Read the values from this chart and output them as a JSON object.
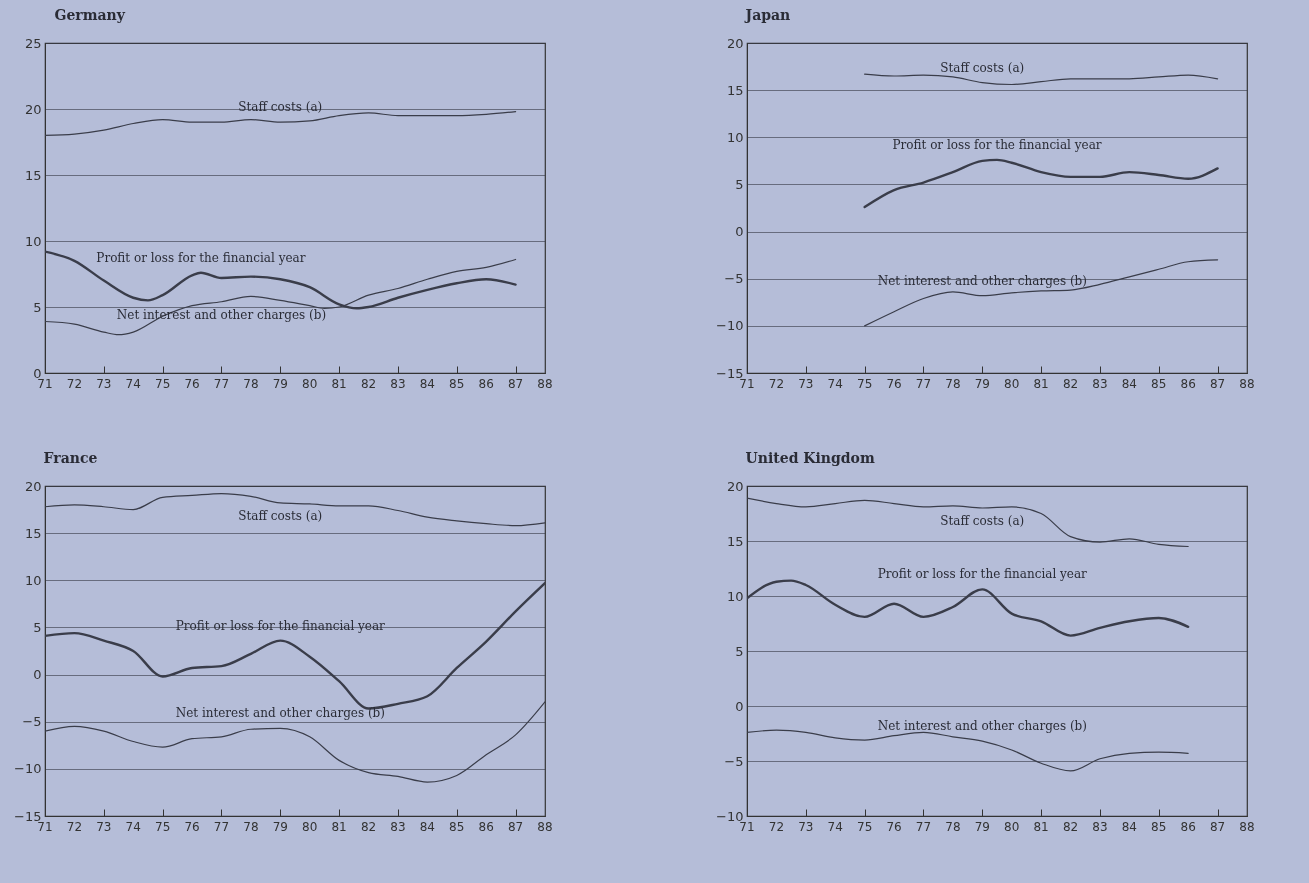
{
  "chart_data": [
    {
      "type": "line",
      "title": "Germany",
      "xlim": [
        71,
        88
      ],
      "xticks": [
        71,
        72,
        73,
        74,
        75,
        76,
        77,
        78,
        79,
        80,
        81,
        82,
        83,
        84,
        85,
        86,
        87,
        88
      ],
      "ylim": [
        0,
        25
      ],
      "yticks": [
        0,
        5,
        10,
        15,
        20,
        25
      ],
      "grid": "y",
      "series": [
        {
          "name": "Staff costs (a)",
          "color": "#3a3d4a",
          "x": [
            71,
            72,
            73,
            74,
            75,
            76,
            77,
            78,
            79,
            80,
            81,
            82,
            83,
            84,
            85,
            86,
            87
          ],
          "values": [
            18.0,
            18.1,
            18.4,
            18.9,
            19.2,
            19.0,
            19.0,
            19.2,
            19.0,
            19.1,
            19.5,
            19.7,
            19.5,
            19.5,
            19.5,
            19.6,
            19.8
          ]
        },
        {
          "name": "Profit or loss for the financial year",
          "color": "#3a3d4a",
          "x": [
            71,
            72,
            73,
            74,
            74.5,
            75,
            76,
            76.3,
            77,
            78,
            79,
            80,
            81,
            81.6,
            82,
            83,
            84,
            85,
            86,
            87
          ],
          "values": [
            9.2,
            8.5,
            7.0,
            5.7,
            5.5,
            5.9,
            7.4,
            7.6,
            7.2,
            7.3,
            7.1,
            6.5,
            5.2,
            4.9,
            5.0,
            5.7,
            6.3,
            6.8,
            7.1,
            6.7
          ]
        },
        {
          "name": "Net interest and other charges (b)",
          "color": "#3a3d4a",
          "x": [
            71,
            72,
            73,
            73.5,
            74,
            75,
            76,
            77,
            78,
            79,
            80,
            80.5,
            81,
            82,
            83,
            84,
            85,
            86,
            87
          ],
          "values": [
            3.9,
            3.7,
            3.1,
            2.9,
            3.1,
            4.3,
            5.1,
            5.4,
            5.8,
            5.5,
            5.1,
            4.9,
            5.0,
            5.9,
            6.4,
            7.1,
            7.7,
            8.0,
            8.6
          ]
        }
      ]
    },
    {
      "type": "line",
      "title": "Japan",
      "xlim": [
        71,
        88
      ],
      "xticks": [
        71,
        72,
        73,
        74,
        75,
        76,
        77,
        78,
        79,
        80,
        81,
        82,
        83,
        84,
        85,
        86,
        87,
        88
      ],
      "ylim": [
        -15,
        20
      ],
      "yticks": [
        -15,
        -10,
        -5,
        0,
        5,
        10,
        15,
        20
      ],
      "grid": "y",
      "series": [
        {
          "name": "Staff costs (a)",
          "color": "#3a3d4a",
          "x": [
            75,
            76,
            77,
            78,
            79,
            80,
            81,
            82,
            83,
            84,
            85,
            86,
            87
          ],
          "values": [
            16.7,
            16.5,
            16.6,
            16.4,
            15.8,
            15.6,
            15.9,
            16.2,
            16.2,
            16.2,
            16.4,
            16.6,
            16.2
          ]
        },
        {
          "name": "Profit or loss for the financial year",
          "color": "#3a3d4a",
          "x": [
            75,
            76,
            77,
            78,
            79,
            79.5,
            80,
            81,
            82,
            83,
            84,
            85,
            86,
            87
          ],
          "values": [
            2.6,
            4.4,
            5.2,
            6.3,
            7.5,
            7.6,
            7.3,
            6.3,
            5.8,
            5.8,
            6.3,
            6.0,
            5.6,
            6.7
          ]
        },
        {
          "name": "Net interest and other charges (b)",
          "color": "#3a3d4a",
          "x": [
            75,
            76,
            77,
            78,
            79,
            80,
            81,
            82,
            83,
            84,
            85,
            86,
            87
          ],
          "values": [
            -10.0,
            -8.5,
            -7.1,
            -6.4,
            -6.8,
            -6.5,
            -6.3,
            -6.2,
            -5.6,
            -4.8,
            -4.0,
            -3.2,
            -3.0
          ]
        }
      ]
    },
    {
      "type": "line",
      "title": "France",
      "xlim": [
        71,
        88
      ],
      "xticks": [
        71,
        72,
        73,
        74,
        75,
        76,
        77,
        78,
        79,
        80,
        81,
        82,
        83,
        84,
        85,
        86,
        87,
        88
      ],
      "ylim": [
        -15,
        20
      ],
      "yticks": [
        -15,
        -10,
        -5,
        0,
        5,
        10,
        15,
        20
      ],
      "grid": "y",
      "series": [
        {
          "name": "Staff costs (a)",
          "color": "#3a3d4a",
          "x": [
            71,
            72,
            73,
            74,
            75,
            76,
            77,
            78,
            79,
            80,
            81,
            82,
            83,
            84,
            85,
            86,
            87,
            88
          ],
          "values": [
            17.8,
            18.0,
            17.8,
            17.5,
            18.8,
            19.0,
            19.2,
            18.9,
            18.2,
            18.1,
            17.9,
            17.9,
            17.4,
            16.7,
            16.3,
            16.0,
            15.8,
            16.1
          ]
        },
        {
          "name": "Profit or loss for the financial year",
          "color": "#3a3d4a",
          "x": [
            71,
            72,
            73,
            74,
            75,
            76,
            77,
            78,
            79,
            80,
            81,
            82,
            83,
            84,
            85,
            86,
            87,
            88
          ],
          "values": [
            4.1,
            4.4,
            3.6,
            2.5,
            -0.2,
            0.7,
            0.9,
            2.2,
            3.6,
            1.9,
            -0.7,
            -3.6,
            -3.1,
            -2.3,
            0.7,
            3.5,
            6.7,
            9.7
          ]
        },
        {
          "name": "Net interest and other charges (b)",
          "color": "#3a3d4a",
          "x": [
            71,
            72,
            73,
            74,
            75,
            76,
            77,
            78,
            79,
            80,
            81,
            82,
            83,
            84,
            85,
            86,
            87,
            88
          ],
          "values": [
            -6.0,
            -5.5,
            -6.0,
            -7.1,
            -7.7,
            -6.8,
            -6.6,
            -5.8,
            -5.7,
            -6.6,
            -9.1,
            -10.4,
            -10.8,
            -11.4,
            -10.7,
            -8.5,
            -6.4,
            -2.9
          ]
        }
      ]
    },
    {
      "type": "line",
      "title": "United Kingdom",
      "xlim": [
        71,
        88
      ],
      "xticks": [
        71,
        72,
        73,
        74,
        75,
        76,
        77,
        78,
        79,
        80,
        81,
        82,
        83,
        84,
        85,
        86,
        87,
        88
      ],
      "ylim": [
        -10,
        20
      ],
      "yticks": [
        -10,
        -5,
        0,
        5,
        10,
        15,
        20
      ],
      "grid": "y",
      "series": [
        {
          "name": "Staff costs (a)",
          "color": "#3a3d4a",
          "x": [
            71,
            72,
            73,
            74,
            75,
            76,
            77,
            78,
            79,
            80,
            81,
            82,
            83,
            84,
            85,
            86
          ],
          "values": [
            18.9,
            18.4,
            18.1,
            18.4,
            18.7,
            18.4,
            18.1,
            18.2,
            18.0,
            18.1,
            17.5,
            15.4,
            14.9,
            15.2,
            14.7,
            14.5
          ]
        },
        {
          "name": "Profit or loss for the financial year",
          "color": "#3a3d4a",
          "x": [
            71,
            72,
            72.5,
            73,
            74,
            75,
            76,
            77,
            78,
            79,
            80,
            81,
            82,
            83,
            84,
            85,
            86
          ],
          "values": [
            9.8,
            11.3,
            11.4,
            11.0,
            9.2,
            8.1,
            9.3,
            8.1,
            9.0,
            10.6,
            8.4,
            7.7,
            6.4,
            7.1,
            7.7,
            8.0,
            7.2
          ]
        },
        {
          "name": "Net interest and other charges (b)",
          "color": "#3a3d4a",
          "x": [
            71,
            72,
            73,
            74,
            75,
            76,
            77,
            78,
            79,
            80,
            81,
            82,
            83,
            84,
            85,
            86
          ],
          "values": [
            -2.4,
            -2.2,
            -2.4,
            -2.9,
            -3.1,
            -2.7,
            -2.4,
            -2.8,
            -3.2,
            -4.0,
            -5.2,
            -5.9,
            -4.8,
            -4.3,
            -4.2,
            -4.3
          ]
        }
      ]
    }
  ]
}
